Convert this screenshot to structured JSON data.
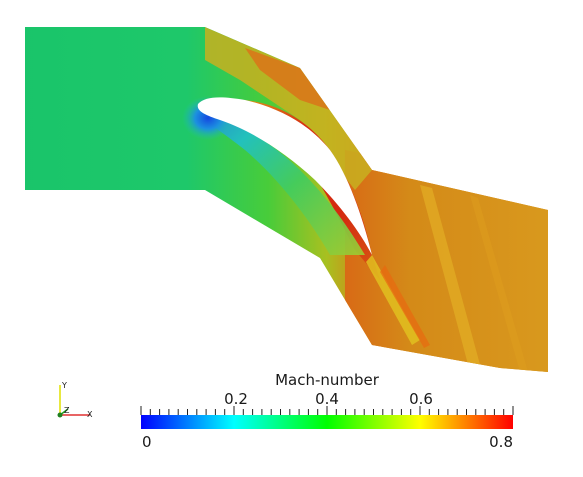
{
  "colorbar": {
    "title": "Mach-number",
    "min_label": "0",
    "max_label": "0.8",
    "tick_labels": [
      "0.2",
      "0.4",
      "0.6"
    ],
    "range": [
      0,
      0.8
    ],
    "colors": [
      "#0000ff",
      "#00ffff",
      "#00ff00",
      "#ffff00",
      "#ff0000"
    ]
  },
  "axes_triad": {
    "y_label": "Y",
    "z_label": "Z",
    "x_label": "X",
    "y_color": "#e0e000",
    "x_color": "#e03030",
    "z_color": "#20a020"
  },
  "field": {
    "inlet_color": "#1ec86a",
    "outlet_color": "#d68a18",
    "peak_color": "#d82a10",
    "low_color": "#1070e0"
  }
}
